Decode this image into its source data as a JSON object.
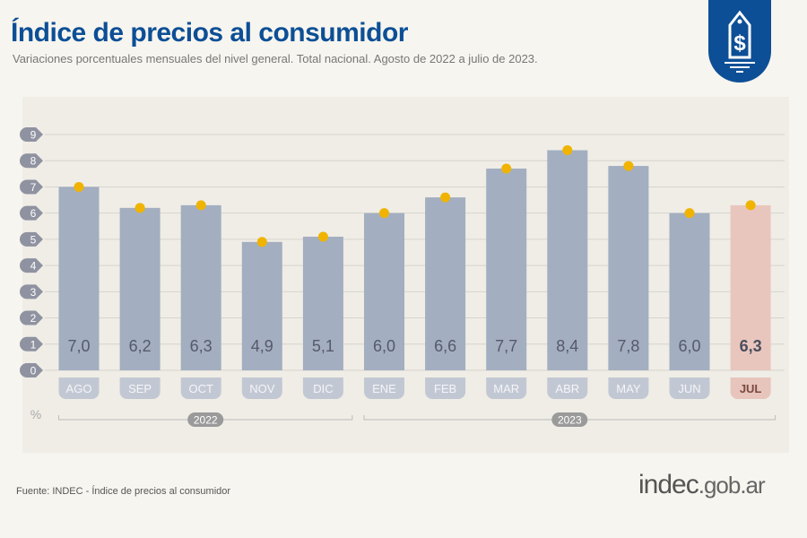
{
  "header": {
    "title": "Índice de precios al consumidor",
    "subtitle": "Variaciones porcentuales mensuales del nivel general. Total nacional. Agosto de 2022 a julio de 2023."
  },
  "icon": "price-tag-dollar-icon",
  "footer": {
    "source": "Fuente: INDEC - Índice de precios al consumidor",
    "logo_main": "indec",
    "logo_suffix": ".gob.ar"
  },
  "chart_data": {
    "type": "bar",
    "ylabel": "%",
    "ylim": [
      0,
      9
    ],
    "yticks": [
      0,
      1,
      2,
      3,
      4,
      5,
      6,
      7,
      8,
      9
    ],
    "grid": true,
    "categories": [
      "AGO",
      "SEP",
      "OCT",
      "NOV",
      "DIC",
      "ENE",
      "FEB",
      "MAR",
      "ABR",
      "MAY",
      "JUN",
      "JUL"
    ],
    "values": [
      7.0,
      6.2,
      6.3,
      4.9,
      5.1,
      6.0,
      6.6,
      7.7,
      8.4,
      7.8,
      6.0,
      6.3
    ],
    "labels": [
      "7,0",
      "6,2",
      "6,3",
      "4,9",
      "5,1",
      "6,0",
      "6,6",
      "7,7",
      "8,4",
      "7,8",
      "6,0",
      "6,3"
    ],
    "year_groups": [
      {
        "label": "2022",
        "from": "AGO",
        "to": "DIC"
      },
      {
        "label": "2023",
        "from": "ENE",
        "to": "JUL"
      }
    ],
    "colors": {
      "bar": "#a3aec0",
      "highlight_bar": "#e9c6bd",
      "marker": "#f0b400",
      "tick_badge": "#8f92a0",
      "title": "#0d4f96"
    },
    "highlight": "JUL"
  }
}
